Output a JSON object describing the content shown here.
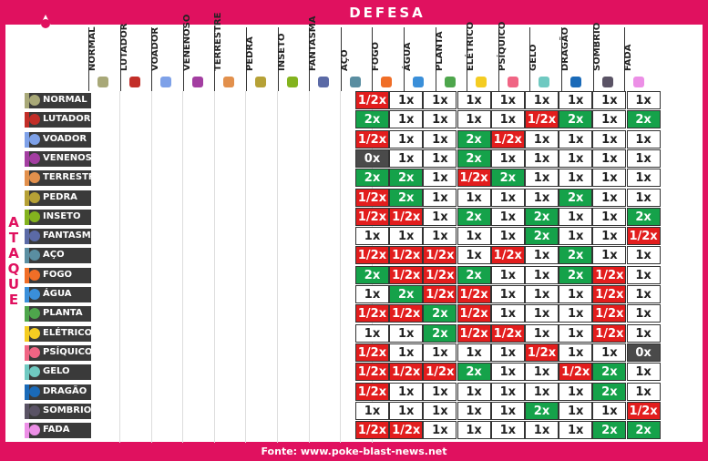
{
  "title": "DEFESA",
  "attack_label": "ATAQUE",
  "footer": "Fonte: www.poke-blast-news.net",
  "columns": [
    {
      "label": "NORMAL",
      "color": "#a8a878"
    },
    {
      "label": "LUTADOR",
      "color": "#c22e28"
    },
    {
      "label": "VOADOR",
      "color": "#7ea1e8"
    },
    {
      "label": "VENENOSO",
      "color": "#a33ea1"
    },
    {
      "label": "TERRESTRE",
      "color": "#e2904c"
    },
    {
      "label": "PEDRA",
      "color": "#b6a136"
    },
    {
      "label": "INSETO",
      "color": "#83b31e"
    },
    {
      "label": "FANTASMA",
      "color": "#5b6aa6"
    },
    {
      "label": "AÇO",
      "color": "#5a8ea1"
    },
    {
      "label": "FOGO",
      "color": "#f06e27"
    },
    {
      "label": "ÁGUA",
      "color": "#3a8fd9"
    },
    {
      "label": "PLANTA",
      "color": "#4ea64c"
    },
    {
      "label": "ELÉTRICO",
      "color": "#f4cc22"
    },
    {
      "label": "PSÍQUICO",
      "color": "#f06584"
    },
    {
      "label": "GELO",
      "color": "#6fc9c1"
    },
    {
      "label": "DRAGÃO",
      "color": "#1a6ab8"
    },
    {
      "label": "SOMBRIO",
      "color": "#5a5365"
    },
    {
      "label": "FADA",
      "color": "#ec8fe6"
    }
  ],
  "rows": [
    {
      "label": "NORMAL",
      "color": "#a8a878",
      "values": [
        "1/2x",
        "1x",
        "1x",
        "1x",
        "1x",
        "1x",
        "1x",
        "1x",
        "1x"
      ]
    },
    {
      "label": "LUTADOR",
      "color": "#c22e28",
      "values": [
        "2x",
        "1x",
        "1x",
        "1x",
        "1x",
        "1/2x",
        "2x",
        "1x",
        "2x"
      ]
    },
    {
      "label": "VOADOR",
      "color": "#7ea1e8",
      "values": [
        "1/2x",
        "1x",
        "1x",
        "2x",
        "1/2x",
        "1x",
        "1x",
        "1x",
        "1x"
      ]
    },
    {
      "label": "VENENOSO",
      "color": "#a33ea1",
      "values": [
        "0x",
        "1x",
        "1x",
        "2x",
        "1x",
        "1x",
        "1x",
        "1x",
        "1x"
      ]
    },
    {
      "label": "TERRESTRE",
      "color": "#e2904c",
      "values": [
        "2x",
        "2x",
        "1x",
        "1/2x",
        "2x",
        "1x",
        "1x",
        "1x",
        "1x"
      ]
    },
    {
      "label": "PEDRA",
      "color": "#b6a136",
      "values": [
        "1/2x",
        "2x",
        "1x",
        "1x",
        "1x",
        "1x",
        "2x",
        "1x",
        "1x"
      ]
    },
    {
      "label": "INSETO",
      "color": "#83b31e",
      "values": [
        "1/2x",
        "1/2x",
        "1x",
        "2x",
        "1x",
        "2x",
        "1x",
        "1x",
        "2x"
      ]
    },
    {
      "label": "FANTASMA",
      "color": "#5b6aa6",
      "values": [
        "1x",
        "1x",
        "1x",
        "1x",
        "1x",
        "2x",
        "1x",
        "1x",
        "1/2x"
      ]
    },
    {
      "label": "AÇO",
      "color": "#5a8ea1",
      "values": [
        "1/2x",
        "1/2x",
        "1/2x",
        "1x",
        "1/2x",
        "1x",
        "2x",
        "1x",
        "1x"
      ]
    },
    {
      "label": "FOGO",
      "color": "#f06e27",
      "values": [
        "2x",
        "1/2x",
        "1/2x",
        "2x",
        "1x",
        "1x",
        "2x",
        "1/2x",
        "1x"
      ]
    },
    {
      "label": "ÁGUA",
      "color": "#3a8fd9",
      "values": [
        "1x",
        "2x",
        "1/2x",
        "1/2x",
        "1x",
        "1x",
        "1x",
        "1/2x",
        "1x"
      ]
    },
    {
      "label": "PLANTA",
      "color": "#4ea64c",
      "values": [
        "1/2x",
        "1/2x",
        "2x",
        "1/2x",
        "1x",
        "1x",
        "1x",
        "1/2x",
        "1x"
      ]
    },
    {
      "label": "ELÉTRICO",
      "color": "#f4cc22",
      "values": [
        "1x",
        "1x",
        "2x",
        "1/2x",
        "1/2x",
        "1x",
        "1x",
        "1/2x",
        "1x"
      ]
    },
    {
      "label": "PSÍQUICO",
      "color": "#f06584",
      "values": [
        "1/2x",
        "1x",
        "1x",
        "1x",
        "1x",
        "1/2x",
        "1x",
        "1x",
        "0x"
      ]
    },
    {
      "label": "GELO",
      "color": "#6fc9c1",
      "values": [
        "1/2x",
        "1/2x",
        "1/2x",
        "2x",
        "1x",
        "1x",
        "1/2x",
        "2x",
        "1x"
      ]
    },
    {
      "label": "DRAGÃO",
      "color": "#1a6ab8",
      "values": [
        "1/2x",
        "1x",
        "1x",
        "1x",
        "1x",
        "1x",
        "1x",
        "2x",
        "1x"
      ]
    },
    {
      "label": "SOMBRIO",
      "color": "#5a5365",
      "values": [
        "1x",
        "1x",
        "1x",
        "1x",
        "1x",
        "2x",
        "1x",
        "1x",
        "1/2x"
      ]
    },
    {
      "label": "FADA",
      "color": "#ec8fe6",
      "values": [
        "1/2x",
        "1/2x",
        "1x",
        "1x",
        "1x",
        "1x",
        "1x",
        "2x",
        "2x"
      ]
    }
  ]
}
